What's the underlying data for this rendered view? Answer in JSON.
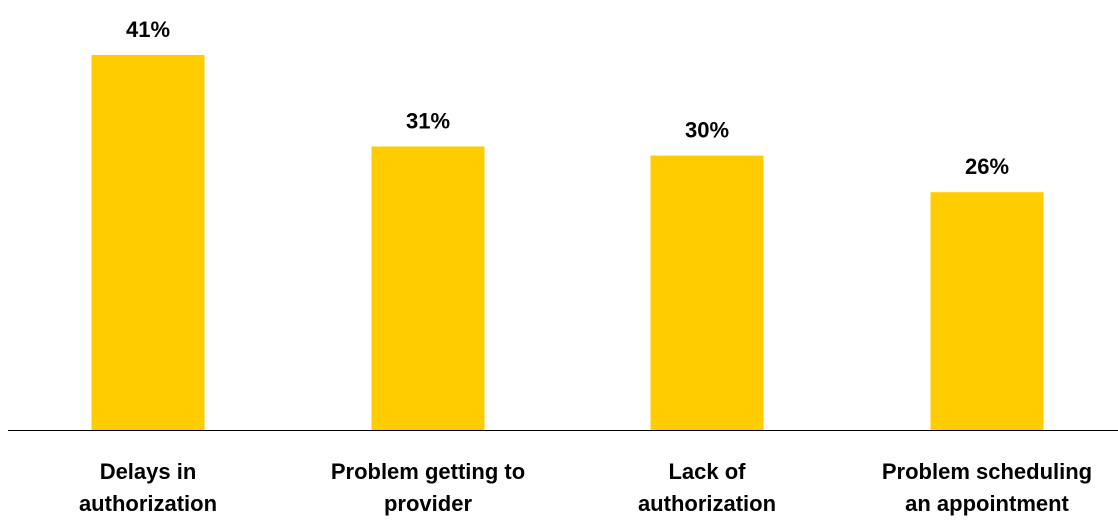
{
  "chart_data": {
    "type": "bar",
    "categories": [
      [
        "Delays in",
        "authorization"
      ],
      [
        "Problem getting to",
        "provider"
      ],
      [
        "Lack of",
        "authorization"
      ],
      [
        "Problem scheduling",
        "an appointment"
      ]
    ],
    "values": [
      41,
      31,
      30,
      26
    ],
    "value_labels": [
      "41%",
      "31%",
      "30%",
      "26%"
    ],
    "unit": "%",
    "title": "",
    "xlabel": "",
    "ylabel": "",
    "ylim": [
      0,
      41
    ],
    "grid": false,
    "legend": "none",
    "bar_color": "#FFCC00",
    "axis_color": "#000000"
  }
}
